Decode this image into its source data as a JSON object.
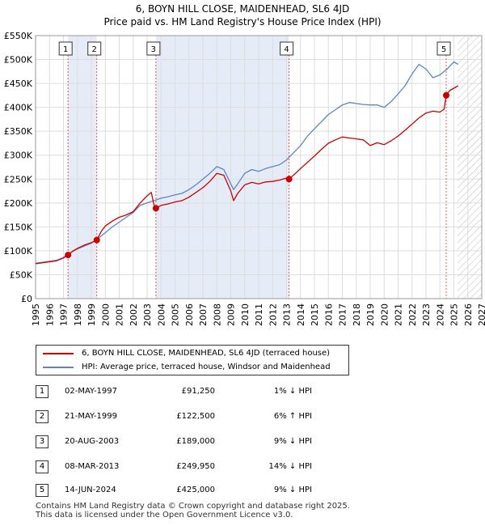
{
  "header": {
    "title_line1": "6, BOYN HILL CLOSE, MAIDENHEAD, SL6 4JD",
    "title_line2": "Price paid vs. HM Land Registry's House Price Index (HPI)"
  },
  "legend": {
    "property_label": "6, BOYN HILL CLOSE, MAIDENHEAD, SL6 4JD (terraced house)",
    "hpi_label": "HPI: Average price, terraced house, Windsor and Maidenhead"
  },
  "colors": {
    "property": "#cc0000",
    "hpi": "#5b86c4",
    "shade": "#e6ecf7",
    "grid": "#dddddd",
    "marker_line": "#e05555"
  },
  "sales": [
    {
      "num": "1",
      "date": "02-MAY-1997",
      "price": "£91,250",
      "hpi": "1% ↓ HPI"
    },
    {
      "num": "2",
      "date": "21-MAY-1999",
      "price": "£122,500",
      "hpi": "6% ↑ HPI"
    },
    {
      "num": "3",
      "date": "20-AUG-2003",
      "price": "£189,000",
      "hpi": "9% ↓ HPI"
    },
    {
      "num": "4",
      "date": "08-MAR-2013",
      "price": "£249,950",
      "hpi": "14% ↓ HPI"
    },
    {
      "num": "5",
      "date": "14-JUN-2024",
      "price": "£425,000",
      "hpi": "9% ↓ HPI"
    }
  ],
  "footer": {
    "line1": "Contains HM Land Registry data © Crown copyright and database right 2025.",
    "line2": "This data is licensed under the Open Government Licence v3.0."
  },
  "chart_data": {
    "type": "line",
    "title": "Price paid vs. HM Land Registry's House Price Index (HPI)",
    "xlim": [
      1995,
      2027
    ],
    "ylim": [
      0,
      550000
    ],
    "x_ticks": [
      "1995",
      "1996",
      "1997",
      "1998",
      "1999",
      "2000",
      "2001",
      "2002",
      "2003",
      "2004",
      "2005",
      "2006",
      "2007",
      "2008",
      "2009",
      "2010",
      "2011",
      "2012",
      "2013",
      "2014",
      "2015",
      "2016",
      "2017",
      "2018",
      "2019",
      "2020",
      "2021",
      "2022",
      "2023",
      "2024",
      "2025",
      "2026",
      "2027"
    ],
    "y_ticks": [
      {
        "value": 0,
        "label": "£0"
      },
      {
        "value": 50000,
        "label": "£50K"
      },
      {
        "value": 100000,
        "label": "£100K"
      },
      {
        "value": 150000,
        "label": "£150K"
      },
      {
        "value": 200000,
        "label": "£200K"
      },
      {
        "value": 250000,
        "label": "£250K"
      },
      {
        "value": 300000,
        "label": "£300K"
      },
      {
        "value": 350000,
        "label": "£350K"
      },
      {
        "value": 400000,
        "label": "£400K"
      },
      {
        "value": 450000,
        "label": "£450K"
      },
      {
        "value": 500000,
        "label": "£500K"
      },
      {
        "value": 550000,
        "label": "£550K"
      }
    ],
    "shaded_ranges": [
      [
        1997.33,
        1999.39
      ],
      [
        2003.63,
        2013.18
      ]
    ],
    "forecast_start": 2025.25,
    "sale_markers": [
      {
        "label": "1",
        "x": 1997.33,
        "y": 91250
      },
      {
        "label": "2",
        "x": 1999.39,
        "y": 122500
      },
      {
        "label": "3",
        "x": 2003.63,
        "y": 189000
      },
      {
        "label": "4",
        "x": 2013.18,
        "y": 249950
      },
      {
        "label": "5",
        "x": 2024.45,
        "y": 425000
      }
    ],
    "series": [
      {
        "name": "6, BOYN HILL CLOSE, MAIDENHEAD, SL6 4JD (terraced house)",
        "x": [
          1995.0,
          1995.5,
          1996.0,
          1996.5,
          1997.0,
          1997.33,
          1997.7,
          1998.0,
          1998.5,
          1999.0,
          1999.39,
          1999.7,
          2000.0,
          2000.5,
          2001.0,
          2001.5,
          2002.0,
          2002.5,
          2003.0,
          2003.3,
          2003.5,
          2003.63,
          2004.0,
          2004.5,
          2005.0,
          2005.5,
          2006.0,
          2006.5,
          2007.0,
          2007.5,
          2008.0,
          2008.5,
          2009.0,
          2009.2,
          2009.5,
          2010.0,
          2010.5,
          2011.0,
          2011.5,
          2012.0,
          2012.5,
          2013.0,
          2013.18,
          2013.5,
          2014.0,
          2014.5,
          2015.0,
          2015.5,
          2016.0,
          2016.5,
          2017.0,
          2017.5,
          2018.0,
          2018.5,
          2019.0,
          2019.5,
          2020.0,
          2020.5,
          2021.0,
          2021.5,
          2022.0,
          2022.5,
          2023.0,
          2023.5,
          2024.0,
          2024.3,
          2024.45,
          2024.7,
          2025.0,
          2025.3
        ],
        "y": [
          73000,
          75000,
          77000,
          79000,
          85000,
          91250,
          100000,
          105000,
          112000,
          117000,
          122500,
          140000,
          152000,
          162000,
          170000,
          175000,
          182000,
          200000,
          215000,
          222000,
          195000,
          189000,
          195000,
          198000,
          202000,
          205000,
          212000,
          222000,
          232000,
          245000,
          262000,
          258000,
          225000,
          205000,
          220000,
          238000,
          243000,
          240000,
          244000,
          245000,
          248000,
          252000,
          249950,
          258000,
          272000,
          285000,
          298000,
          312000,
          325000,
          332000,
          338000,
          336000,
          334000,
          332000,
          320000,
          326000,
          322000,
          330000,
          340000,
          352000,
          365000,
          378000,
          388000,
          392000,
          390000,
          396000,
          425000,
          435000,
          440000,
          445000
        ]
      },
      {
        "name": "HPI: Average price, terraced house, Windsor and Maidenhead",
        "x": [
          1995.0,
          1995.5,
          1996.0,
          1996.5,
          1997.0,
          1997.5,
          1998.0,
          1998.5,
          1999.0,
          1999.5,
          2000.0,
          2000.5,
          2001.0,
          2001.5,
          2002.0,
          2002.5,
          2003.0,
          2003.5,
          2004.0,
          2004.5,
          2005.0,
          2005.5,
          2006.0,
          2006.5,
          2007.0,
          2007.5,
          2008.0,
          2008.5,
          2009.0,
          2009.2,
          2009.5,
          2010.0,
          2010.5,
          2011.0,
          2011.5,
          2012.0,
          2012.5,
          2013.0,
          2013.5,
          2014.0,
          2014.5,
          2015.0,
          2015.5,
          2016.0,
          2016.5,
          2017.0,
          2017.5,
          2018.0,
          2018.5,
          2019.0,
          2019.5,
          2020.0,
          2020.5,
          2021.0,
          2021.5,
          2022.0,
          2022.5,
          2023.0,
          2023.5,
          2024.0,
          2024.5,
          2025.0,
          2025.3
        ],
        "y": [
          74000,
          76000,
          78000,
          80000,
          86000,
          96000,
          104000,
          110000,
          116000,
          126000,
          138000,
          150000,
          160000,
          170000,
          180000,
          195000,
          200000,
          205000,
          210000,
          213000,
          217000,
          220000,
          228000,
          238000,
          250000,
          262000,
          276000,
          270000,
          240000,
          228000,
          240000,
          262000,
          270000,
          266000,
          272000,
          276000,
          280000,
          290000,
          305000,
          320000,
          340000,
          355000,
          370000,
          385000,
          395000,
          405000,
          410000,
          408000,
          406000,
          405000,
          405000,
          400000,
          412000,
          428000,
          445000,
          470000,
          490000,
          480000,
          462000,
          468000,
          480000,
          495000,
          490000
        ]
      }
    ]
  }
}
